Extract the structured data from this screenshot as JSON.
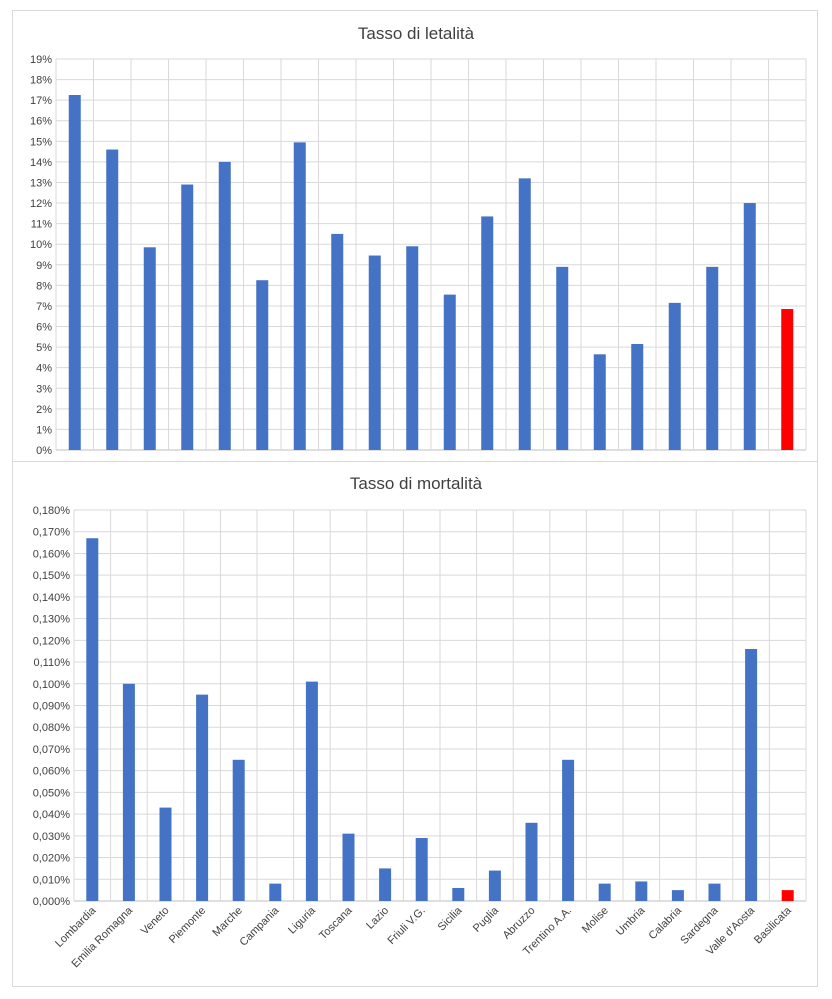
{
  "colors": {
    "bar": "#4472C4",
    "highlight": "#FF0000",
    "grid": "#D9D9D9",
    "text": "#404040"
  },
  "chart_data": [
    {
      "type": "bar",
      "title": "Tasso di letalità",
      "categories": [
        "Lombardia",
        "Emilia Romagna",
        "Veneto",
        "Piemonte",
        "Marche",
        "Campania",
        "Liguria",
        "Toscana",
        "Lazio",
        "Friuli V.G.",
        "Sicilia",
        "Puglia",
        "Abruzzo",
        "Trentino A.A.",
        "Molise",
        "Umbria",
        "Calabria",
        "Sardegna",
        "Valle d'Aosta",
        "Basilicata"
      ],
      "values": [
        17.25,
        14.6,
        9.85,
        12.9,
        14.0,
        8.25,
        14.95,
        10.5,
        9.45,
        9.9,
        7.55,
        11.35,
        13.2,
        8.9,
        4.65,
        5.15,
        7.15,
        8.9,
        12.0,
        6.85
      ],
      "highlight_category": "Basilicata",
      "ylim": [
        0,
        19
      ],
      "yticks": [
        "0%",
        "1%",
        "2%",
        "3%",
        "4%",
        "5%",
        "6%",
        "7%",
        "8%",
        "9%",
        "10%",
        "11%",
        "12%",
        "13%",
        "14%",
        "15%",
        "16%",
        "17%",
        "18%",
        "19%"
      ],
      "show_category_labels": false,
      "grid": true
    },
    {
      "type": "bar",
      "title": "Tasso di mortalità",
      "categories": [
        "Lombardia",
        "Emilia Romagna",
        "Veneto",
        "Piemonte",
        "Marche",
        "Campania",
        "Liguria",
        "Toscana",
        "Lazio",
        "Friuli V.G.",
        "Sicilia",
        "Puglia",
        "Abruzzo",
        "Trentino A.A.",
        "Molise",
        "Umbria",
        "Calabria",
        "Sardegna",
        "Valle d'Aosta",
        "Basilicata"
      ],
      "values": [
        0.167,
        0.1,
        0.043,
        0.095,
        0.065,
        0.008,
        0.101,
        0.031,
        0.015,
        0.029,
        0.006,
        0.014,
        0.036,
        0.065,
        0.008,
        0.009,
        0.005,
        0.008,
        0.116,
        0.005
      ],
      "highlight_category": "Basilicata",
      "ylim": [
        0,
        0.18
      ],
      "yticks": [
        "0,000%",
        "0,010%",
        "0,020%",
        "0,030%",
        "0,040%",
        "0,050%",
        "0,060%",
        "0,070%",
        "0,080%",
        "0,090%",
        "0,100%",
        "0,110%",
        "0,120%",
        "0,130%",
        "0,140%",
        "0,150%",
        "0,160%",
        "0,170%",
        "0,180%"
      ],
      "show_category_labels": true,
      "grid": true
    }
  ]
}
